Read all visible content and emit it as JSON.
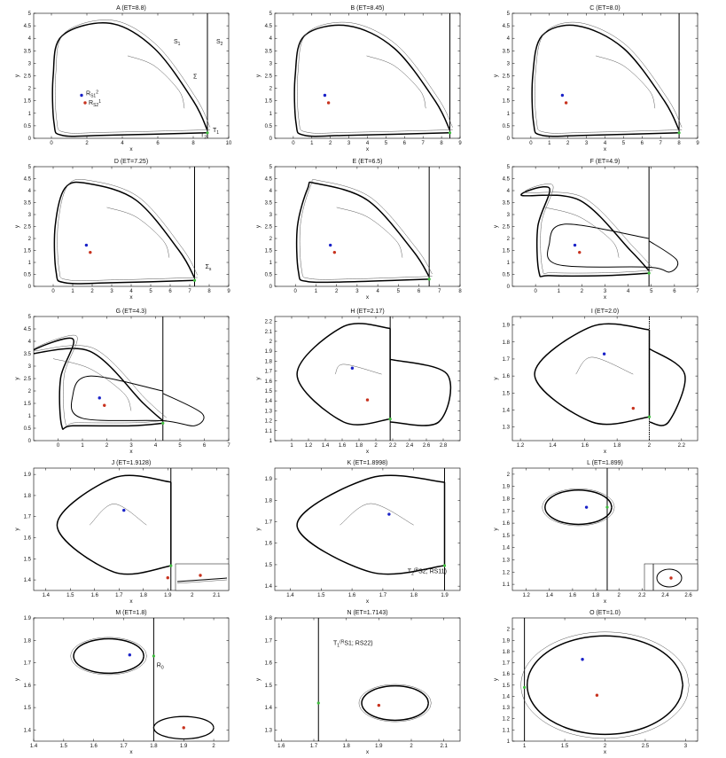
{
  "chart_data": [
    {
      "type": "line",
      "panel": "A",
      "title": "A (ET=8.8)",
      "xlabel": "x",
      "ylabel": "y",
      "xlim": [
        -1,
        10
      ],
      "ylim": [
        0,
        5
      ],
      "xticks": [
        0,
        2,
        4,
        6,
        8,
        10
      ],
      "yticks": [
        0,
        0.5,
        1,
        1.5,
        2,
        2.5,
        3,
        3.5,
        4,
        4.5,
        5
      ],
      "xtick_labels": [
        "0",
        "2",
        "4",
        "6",
        "8",
        "10"
      ],
      "ytick_labels": [
        "0",
        "0.5",
        "1",
        "1.5",
        "2",
        "2.5",
        "3",
        "3.5",
        "4",
        "4.5",
        "5"
      ],
      "threshold_x": 8.8,
      "blue_point": [
        1.7,
        1.72
      ],
      "red_point": [
        1.9,
        1.42
      ],
      "annotations": [
        {
          "label_parts": [
            "S",
            "1"
          ],
          "x": 6.9,
          "y": 3.8
        },
        {
          "label_parts": [
            "S",
            "2"
          ],
          "x": 9.3,
          "y": 3.8
        },
        {
          "label_parts": [
            "R",
            "S1",
            "2"
          ],
          "x": 1.95,
          "y": 1.72
        },
        {
          "label_parts": [
            "R",
            "S2",
            "1"
          ],
          "x": 2.1,
          "y": 1.35
        },
        {
          "label_parts": [
            "T",
            "1"
          ],
          "x": 9.1,
          "y": 0.25
        },
        {
          "label_parts": [
            "T",
            "2"
          ],
          "x": 8.4,
          "y": 0.05
        },
        {
          "label_parts": [
            "Σ",
            ""
          ],
          "x": 8.0,
          "y": 2.4
        }
      ]
    },
    {
      "type": "line",
      "panel": "B",
      "title": "B (ET=8.45)",
      "xlabel": "x",
      "ylabel": "y",
      "xlim": [
        -1,
        9
      ],
      "ylim": [
        0,
        5
      ],
      "xticks": [
        0,
        1,
        2,
        3,
        4,
        5,
        6,
        7,
        8,
        9
      ],
      "yticks": [
        0,
        0.5,
        1,
        1.5,
        2,
        2.5,
        3,
        3.5,
        4,
        4.5,
        5
      ],
      "xtick_labels": [
        "0",
        "1",
        "2",
        "3",
        "4",
        "5",
        "6",
        "7",
        "8",
        "9"
      ],
      "ytick_labels": [
        "0",
        "0.5",
        "1",
        "1.5",
        "2",
        "2.5",
        "3",
        "3.5",
        "4",
        "4.5",
        "5"
      ],
      "threshold_x": 8.45,
      "blue_point": [
        1.7,
        1.72
      ],
      "red_point": [
        1.9,
        1.42
      ],
      "annotations": []
    },
    {
      "type": "line",
      "panel": "C",
      "title": "C (ET=8.0)",
      "xlabel": "x",
      "ylabel": "y",
      "xlim": [
        -1,
        9
      ],
      "ylim": [
        0,
        5
      ],
      "xticks": [
        0,
        1,
        2,
        3,
        4,
        5,
        6,
        7,
        8,
        9
      ],
      "yticks": [
        0,
        0.5,
        1,
        1.5,
        2,
        2.5,
        3,
        3.5,
        4,
        4.5,
        5
      ],
      "xtick_labels": [
        "0",
        "1",
        "2",
        "3",
        "4",
        "5",
        "6",
        "7",
        "8",
        "9"
      ],
      "ytick_labels": [
        "0",
        "0.5",
        "1",
        "1.5",
        "2",
        "2.5",
        "3",
        "3.5",
        "4",
        "4.5",
        "5"
      ],
      "threshold_x": 8.0,
      "blue_point": [
        1.7,
        1.72
      ],
      "red_point": [
        1.9,
        1.42
      ],
      "annotations": []
    },
    {
      "type": "line",
      "panel": "D",
      "title": "D (ET=7.25)",
      "xlabel": "x",
      "ylabel": "y",
      "xlim": [
        -1,
        9
      ],
      "ylim": [
        0,
        5
      ],
      "xticks": [
        0,
        1,
        2,
        3,
        4,
        5,
        6,
        7,
        8,
        9
      ],
      "yticks": [
        0,
        0.5,
        1,
        1.5,
        2,
        2.5,
        3,
        3.5,
        4,
        4.5,
        5
      ],
      "xtick_labels": [
        "0",
        "1",
        "2",
        "3",
        "4",
        "5",
        "6",
        "7",
        "8",
        "9"
      ],
      "ytick_labels": [
        "0",
        "0.5",
        "1",
        "1.5",
        "2",
        "2.5",
        "3",
        "3.5",
        "4",
        "4.5",
        "5"
      ],
      "threshold_x": 7.25,
      "blue_point": [
        1.7,
        1.72
      ],
      "red_point": [
        1.9,
        1.42
      ],
      "annotations": [
        {
          "label_parts": [
            "Σ",
            "s"
          ],
          "x": 7.8,
          "y": 0.75
        }
      ]
    },
    {
      "type": "line",
      "panel": "E",
      "title": "E (ET=6.5)",
      "xlabel": "x",
      "ylabel": "y",
      "xlim": [
        -1,
        8
      ],
      "ylim": [
        0,
        5
      ],
      "xticks": [
        0,
        1,
        2,
        3,
        4,
        5,
        6,
        7,
        8
      ],
      "yticks": [
        0,
        0.5,
        1,
        1.5,
        2,
        2.5,
        3,
        3.5,
        4,
        4.5,
        5
      ],
      "xtick_labels": [
        "0",
        "1",
        "2",
        "3",
        "4",
        "5",
        "6",
        "7",
        "8"
      ],
      "ytick_labels": [
        "0",
        "0.5",
        "1",
        "1.5",
        "2",
        "2.5",
        "3",
        "3.5",
        "4",
        "4.5",
        "5"
      ],
      "threshold_x": 6.5,
      "blue_point": [
        1.7,
        1.72
      ],
      "red_point": [
        1.9,
        1.42
      ],
      "annotations": []
    },
    {
      "type": "line",
      "panel": "F",
      "title": "F (ET=4.9)",
      "xlabel": "x",
      "ylabel": "y",
      "xlim": [
        -1,
        7
      ],
      "ylim": [
        0,
        5
      ],
      "xticks": [
        0,
        1,
        2,
        3,
        4,
        5,
        6,
        7
      ],
      "yticks": [
        0,
        0.5,
        1,
        1.5,
        2,
        2.5,
        3,
        3.5,
        4,
        4.5,
        5
      ],
      "xtick_labels": [
        "0",
        "1",
        "2",
        "3",
        "4",
        "5",
        "6",
        "7"
      ],
      "ytick_labels": [
        "0",
        "0.5",
        "1",
        "1.5",
        "2",
        "2.5",
        "3",
        "3.5",
        "4",
        "4.5",
        "5"
      ],
      "threshold_x": 4.9,
      "blue_point": [
        1.7,
        1.72
      ],
      "red_point": [
        1.9,
        1.42
      ],
      "annotations": []
    },
    {
      "type": "line",
      "panel": "G",
      "title": "G (ET=4.3)",
      "xlabel": "x",
      "ylabel": "y",
      "xlim": [
        -1,
        7
      ],
      "ylim": [
        0,
        5
      ],
      "xticks": [
        0,
        1,
        2,
        3,
        4,
        5,
        6,
        7
      ],
      "yticks": [
        0,
        0.5,
        1,
        1.5,
        2,
        2.5,
        3,
        3.5,
        4,
        4.5,
        5
      ],
      "xtick_labels": [
        "0",
        "1",
        "2",
        "3",
        "4",
        "5",
        "6",
        "7"
      ],
      "ytick_labels": [
        "0",
        "0.5",
        "1",
        "1.5",
        "2",
        "2.5",
        "3",
        "3.5",
        "4",
        "4.5",
        "5"
      ],
      "threshold_x": 4.3,
      "blue_point": [
        1.7,
        1.72
      ],
      "red_point": [
        1.9,
        1.42
      ],
      "annotations": []
    },
    {
      "type": "line",
      "panel": "H",
      "title": "H (ET=2.17)",
      "xlabel": "x",
      "ylabel": "y",
      "xlim": [
        0.8,
        3.0
      ],
      "ylim": [
        1.0,
        2.25
      ],
      "xticks": [
        1,
        1.2,
        1.4,
        1.6,
        1.8,
        2,
        2.2,
        2.4,
        2.6,
        2.8
      ],
      "yticks": [
        1,
        1.1,
        1.2,
        1.3,
        1.4,
        1.5,
        1.6,
        1.7,
        1.8,
        1.9,
        2,
        2.1,
        2.2
      ],
      "xtick_labels": [
        "1",
        "1.2",
        "1.4",
        "1.6",
        "1.8",
        "2",
        "2.2",
        "2.4",
        "2.6",
        "2.8"
      ],
      "ytick_labels": [
        "1",
        "1.1",
        "1.2",
        "1.3",
        "1.4",
        "1.5",
        "1.6",
        "1.7",
        "1.8",
        "1.9",
        "2",
        "2.1",
        "2.2"
      ],
      "threshold_x": 2.17,
      "blue_point": [
        1.72,
        1.73
      ],
      "red_point": [
        1.9,
        1.41
      ],
      "annotations": []
    },
    {
      "type": "line",
      "panel": "I",
      "title": "I (ET=2.0)",
      "xlabel": "x",
      "ylabel": "y",
      "xlim": [
        1.15,
        2.3
      ],
      "ylim": [
        1.22,
        1.95
      ],
      "xticks": [
        1.2,
        1.4,
        1.6,
        1.8,
        2,
        2.2
      ],
      "yticks": [
        1.3,
        1.4,
        1.5,
        1.6,
        1.7,
        1.8,
        1.9
      ],
      "xtick_labels": [
        "1.2",
        "1.4",
        "1.6",
        "1.8",
        "2",
        "2.2"
      ],
      "ytick_labels": [
        "1.3",
        "1.4",
        "1.5",
        "1.6",
        "1.7",
        "1.8",
        "1.9"
      ],
      "threshold_x": 2.0,
      "blue_point": [
        1.72,
        1.73
      ],
      "red_point": [
        1.9,
        1.41
      ],
      "annotations": []
    },
    {
      "type": "line",
      "panel": "J",
      "title": "J (ET=1.9128)",
      "xlabel": "x",
      "ylabel": "y",
      "xlim": [
        1.35,
        2.15
      ],
      "ylim": [
        1.35,
        1.93
      ],
      "xticks": [
        1.4,
        1.5,
        1.6,
        1.7,
        1.8,
        1.9,
        2,
        2.1
      ],
      "yticks": [
        1.4,
        1.5,
        1.6,
        1.7,
        1.8,
        1.9
      ],
      "xtick_labels": [
        "1.4",
        "1.5",
        "1.6",
        "1.7",
        "1.8",
        "1.9",
        "2",
        "2.1"
      ],
      "ytick_labels": [
        "1.4",
        "1.5",
        "1.6",
        "1.7",
        "1.8",
        "1.9"
      ],
      "threshold_x": 1.9128,
      "blue_point": [
        1.72,
        1.73
      ],
      "red_point": [
        1.9,
        1.41
      ],
      "annotations": []
    },
    {
      "type": "line",
      "panel": "K",
      "title": "K (ET=1.8998)",
      "xlabel": "x",
      "ylabel": "y",
      "xlim": [
        1.35,
        1.95
      ],
      "ylim": [
        1.38,
        1.95
      ],
      "xticks": [
        1.4,
        1.5,
        1.6,
        1.7,
        1.8,
        1.9
      ],
      "yticks": [
        1.4,
        1.5,
        1.6,
        1.7,
        1.8,
        1.9
      ],
      "xtick_labels": [
        "1.4",
        "1.5",
        "1.6",
        "1.7",
        "1.8",
        "1.9"
      ],
      "ytick_labels": [
        "1.4",
        "1.5",
        "1.6",
        "1.7",
        "1.8",
        "1.9"
      ],
      "threshold_x": 1.8998,
      "blue_point": [
        1.72,
        1.735
      ],
      "red_point": null,
      "annotations": [
        {
          "label_parts": [
            "T",
            "2",
            "(R",
            "S2",
            "; R",
            "S1",
            "1",
            ")"
          ],
          "x": 1.78,
          "y": 1.46
        }
      ]
    },
    {
      "type": "line",
      "panel": "L",
      "title": "L (ET=1.899)",
      "xlabel": "x",
      "ylabel": "y",
      "xlim": [
        1.08,
        2.68
      ],
      "ylim": [
        1.05,
        2.05
      ],
      "xticks": [
        1.2,
        1.4,
        1.6,
        1.8,
        2,
        2.2,
        2.4,
        2.6
      ],
      "yticks": [
        1.1,
        1.2,
        1.3,
        1.4,
        1.5,
        1.6,
        1.7,
        1.8,
        1.9,
        2
      ],
      "xtick_labels": [
        "1.2",
        "1.4",
        "1.6",
        "1.8",
        "2",
        "2.2",
        "2.4",
        "2.6"
      ],
      "ytick_labels": [
        "1.1",
        "1.2",
        "1.3",
        "1.4",
        "1.5",
        "1.6",
        "1.7",
        "1.8",
        "1.9",
        "2"
      ],
      "threshold_x": 1.899,
      "blue_point": [
        1.72,
        1.73
      ],
      "red_point": [
        2.47,
        1.18
      ],
      "annotations": []
    },
    {
      "type": "line",
      "panel": "M",
      "title": "M (ET=1.8)",
      "xlabel": "x",
      "ylabel": "y",
      "xlim": [
        1.4,
        2.05
      ],
      "ylim": [
        1.35,
        1.9
      ],
      "xticks": [
        1.4,
        1.5,
        1.6,
        1.7,
        1.8,
        1.9,
        2
      ],
      "yticks": [
        1.4,
        1.5,
        1.6,
        1.7,
        1.8,
        1.9
      ],
      "xtick_labels": [
        "1.4",
        "1.5",
        "1.6",
        "1.7",
        "1.8",
        "1.9",
        "2"
      ],
      "ytick_labels": [
        "1.4",
        "1.5",
        "1.6",
        "1.7",
        "1.8",
        "1.9"
      ],
      "threshold_x": 1.8,
      "blue_point": [
        1.72,
        1.735
      ],
      "red_point": [
        1.9,
        1.41
      ],
      "annotations": [
        {
          "label_parts": [
            "R",
            "0"
          ],
          "x": 1.81,
          "y": 1.68
        }
      ]
    },
    {
      "type": "line",
      "panel": "N",
      "title": "N (ET=1.7143)",
      "xlabel": "x",
      "ylabel": "y",
      "xlim": [
        1.58,
        2.15
      ],
      "ylim": [
        1.25,
        1.8
      ],
      "xticks": [
        1.6,
        1.7,
        1.8,
        1.9,
        2,
        2.1
      ],
      "yticks": [
        1.3,
        1.4,
        1.5,
        1.6,
        1.7,
        1.8
      ],
      "xtick_labels": [
        "1.6",
        "1.7",
        "1.8",
        "1.9",
        "2",
        "2.1"
      ],
      "ytick_labels": [
        "1.3",
        "1.4",
        "1.5",
        "1.6",
        "1.7",
        "1.8"
      ],
      "threshold_x": 1.7143,
      "blue_point": null,
      "red_point": [
        1.9,
        1.41
      ],
      "annotations": [
        {
          "label_parts": [
            "T",
            "1",
            "(R",
            "S1",
            "; R",
            "S2",
            "2",
            ")"
          ],
          "x": 1.76,
          "y": 1.68
        }
      ]
    },
    {
      "type": "line",
      "panel": "O",
      "title": "O (ET=1.0)",
      "xlabel": "x",
      "ylabel": "y",
      "xlim": [
        0.85,
        3.15
      ],
      "ylim": [
        1.0,
        2.1
      ],
      "xticks": [
        1,
        1.5,
        2,
        2.5,
        3
      ],
      "yticks": [
        1,
        1.1,
        1.2,
        1.3,
        1.4,
        1.5,
        1.6,
        1.7,
        1.8,
        1.9,
        2
      ],
      "xtick_labels": [
        "1",
        "1.5",
        "2",
        "2.5",
        "3"
      ],
      "ytick_labels": [
        "1",
        "1.1",
        "1.2",
        "1.3",
        "1.4",
        "1.5",
        "1.6",
        "1.7",
        "1.8",
        "1.9",
        "2"
      ],
      "threshold_x": 1.0,
      "blue_point": [
        1.72,
        1.73
      ],
      "red_point": [
        1.9,
        1.41
      ],
      "annotations": []
    }
  ],
  "colors": {
    "trajectory": "#000000",
    "guide": "#555555",
    "blue_point": "#1a22c8",
    "red_point": "#c8321e",
    "green_marker": "#3fbf3f"
  }
}
